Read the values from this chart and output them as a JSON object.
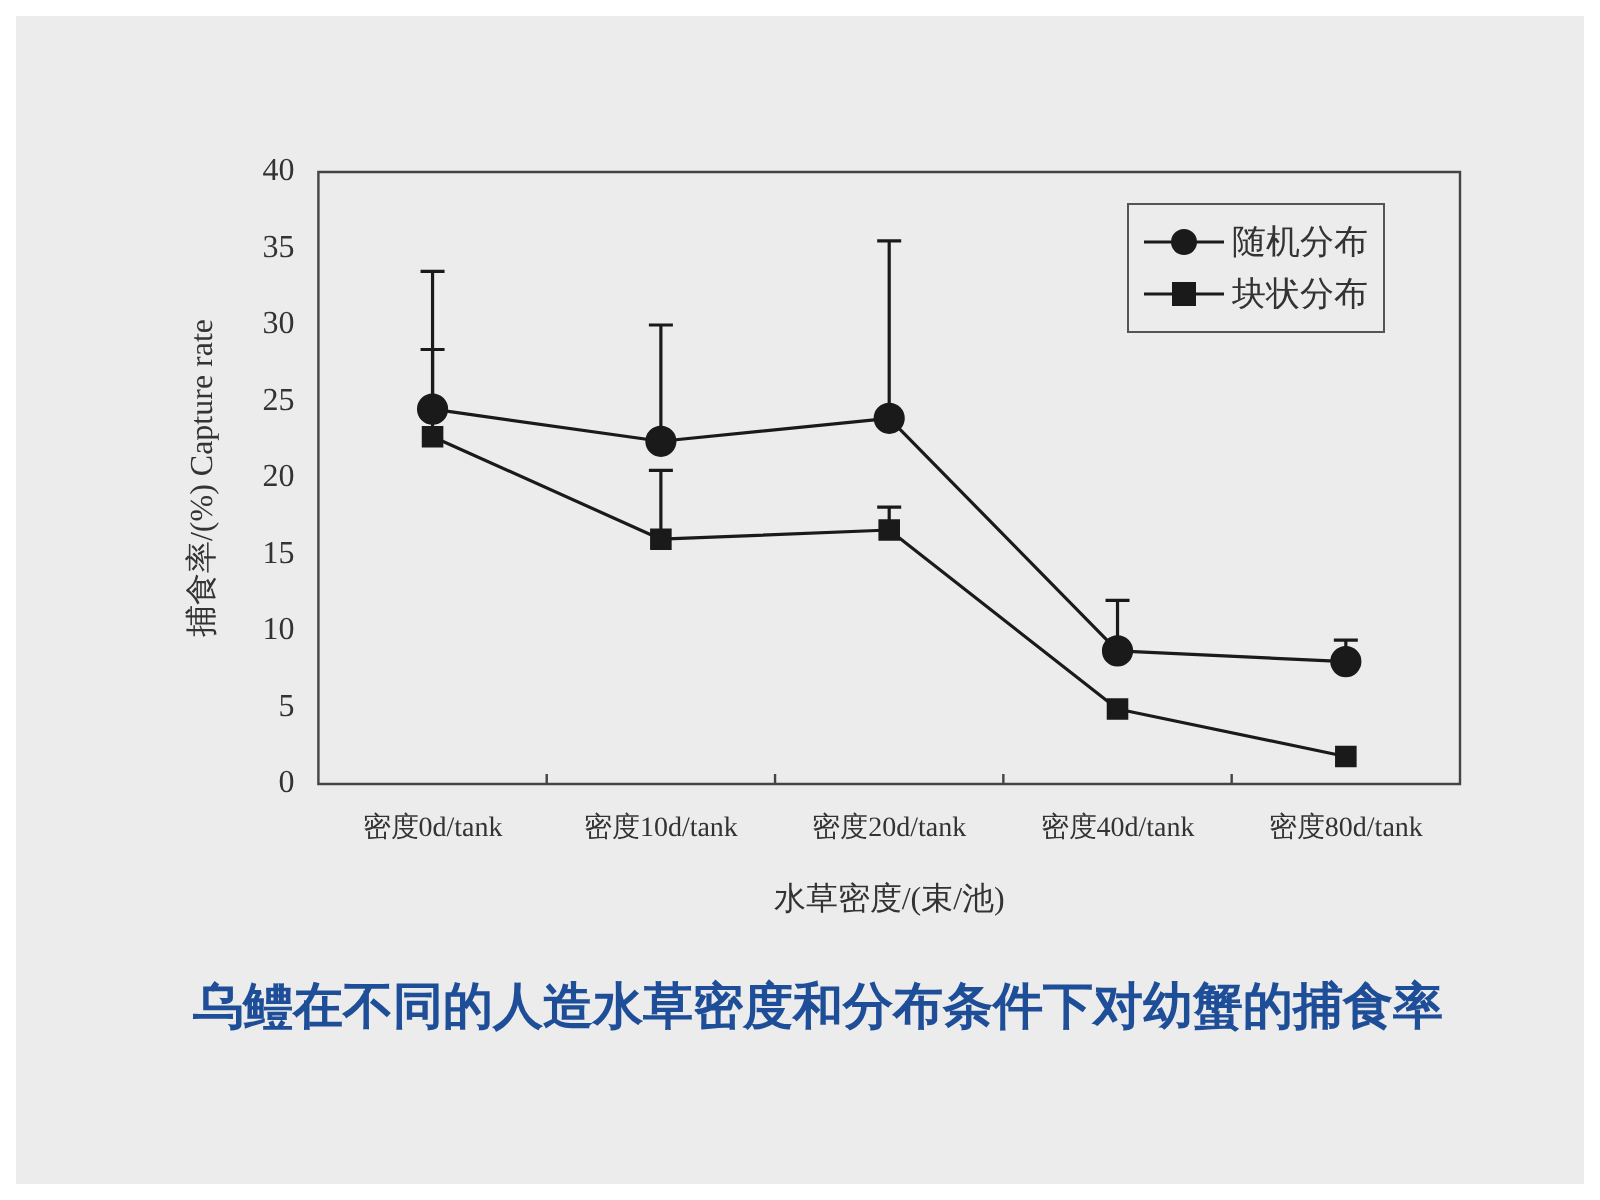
{
  "chart_data": {
    "type": "line",
    "title": "乌鳢在不同的人造水草密度和分布条件下对幼蟹的捕食率",
    "xlabel": "水草密度/(束/池)",
    "ylabel": "捕食率/(%) Capture rate",
    "categories": [
      "密度0d/tank",
      "密度10d/tank",
      "密度20d/tank",
      "密度40d/tank",
      "密度80d/tank"
    ],
    "series": [
      {
        "name": "随机分布",
        "color": "#1a1a1a",
        "marker": "circle",
        "values": [
          24.5,
          22.4,
          23.9,
          8.7,
          8
        ],
        "errors": [
          [
            24.5,
            33.5
          ],
          [
            22.4,
            30
          ],
          [
            23.9,
            35.5
          ],
          [
            8.7,
            12
          ],
          [
            8,
            9.4
          ]
        ]
      },
      {
        "name": "块状分布",
        "color": "#1a1a1a",
        "marker": "square",
        "values": [
          22.7,
          16,
          16.6,
          4.9,
          1.8
        ],
        "errors": [
          [
            22.7,
            28.4
          ],
          [
            16,
            20.5
          ],
          [
            16.6,
            18.1
          ],
          null,
          null
        ]
      }
    ],
    "ylim": [
      0,
      40
    ],
    "yticks": [
      0,
      5,
      10,
      15,
      20,
      25,
      30,
      35,
      40
    ],
    "grid": false,
    "legend": "top right"
  }
}
